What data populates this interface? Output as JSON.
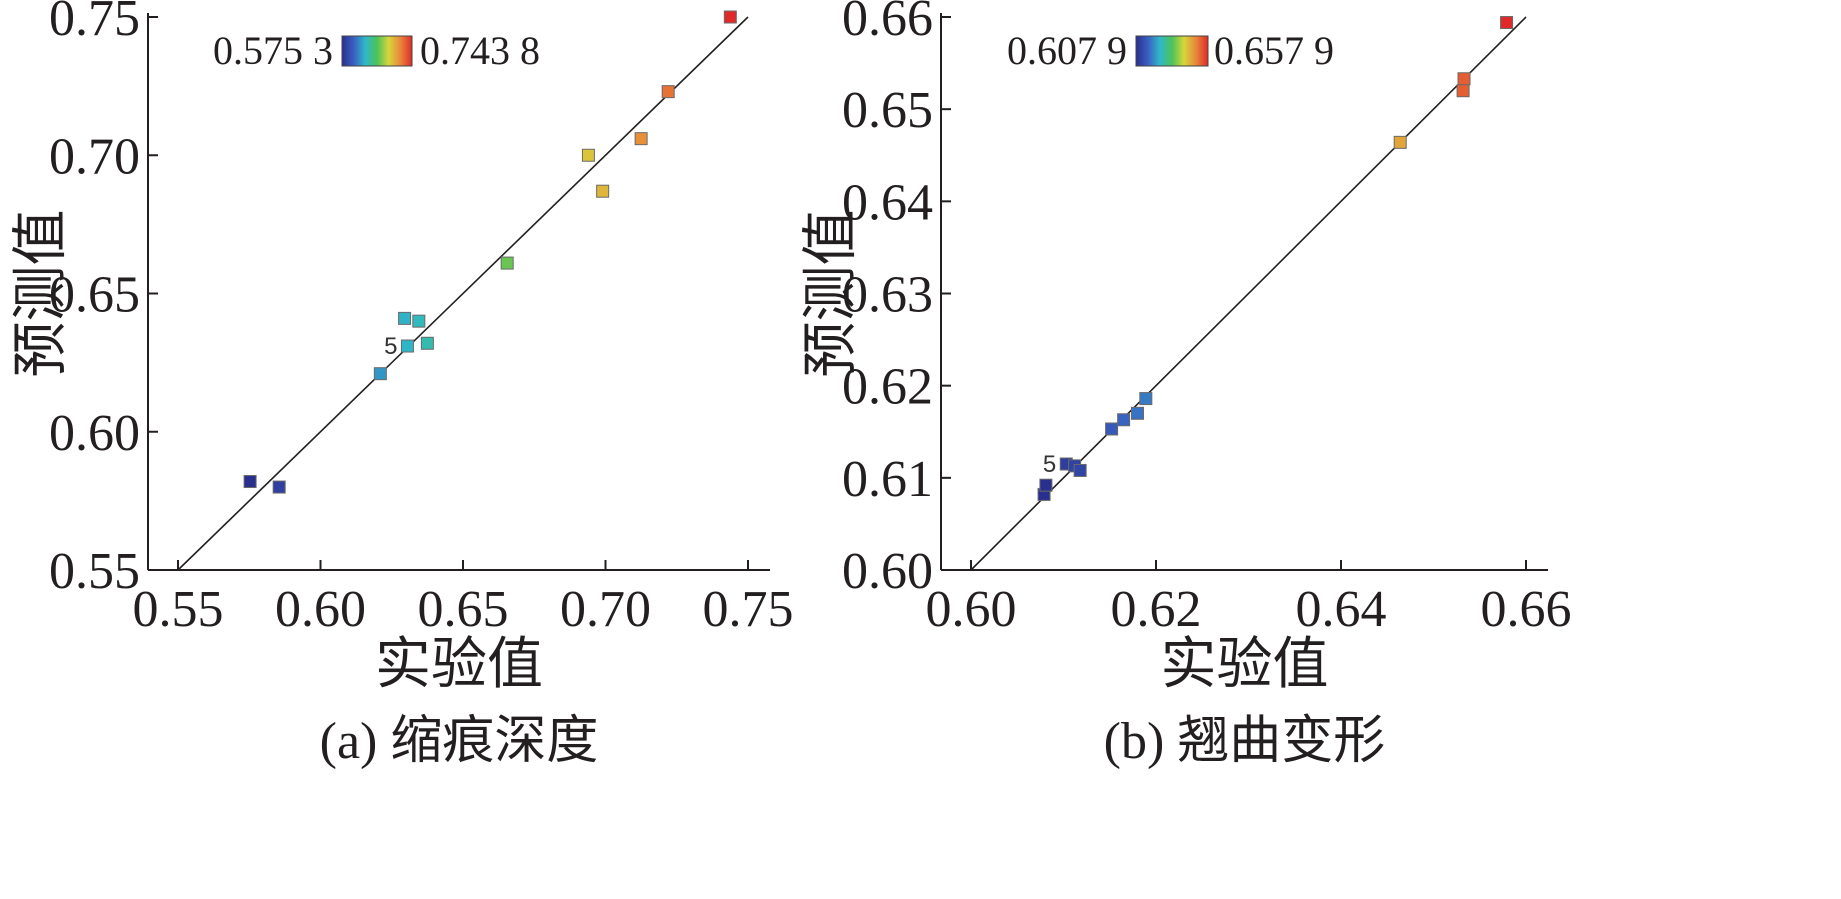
{
  "chart_data": [
    {
      "type": "scatter",
      "caption": "(a) 缩痕深度",
      "xlabel": "实验值",
      "ylabel": "预测值",
      "xlim": [
        0.55,
        0.75
      ],
      "ylim": [
        0.55,
        0.75
      ],
      "x_ticks": [
        "0.55",
        "0.60",
        "0.65",
        "0.70",
        "0.75"
      ],
      "y_ticks": [
        "0.55",
        "0.60",
        "0.65",
        "0.70",
        "0.75"
      ],
      "reference_line": [
        [
          0.55,
          0.55
        ],
        [
          0.75,
          0.75
        ]
      ],
      "colorbar": {
        "min_label": "0.575 3",
        "max_label": "0.743 8",
        "min": 0.5753,
        "max": 0.7438,
        "colors": [
          "#2a2f8f",
          "#3a5fc0",
          "#2fb8c8",
          "#4cc25a",
          "#d6d63a",
          "#e8873a",
          "#e02a2a"
        ]
      },
      "points": [
        {
          "x": 0.5753,
          "y": 0.582
        },
        {
          "x": 0.5855,
          "y": 0.58
        },
        {
          "x": 0.621,
          "y": 0.621
        },
        {
          "x": 0.6295,
          "y": 0.641
        },
        {
          "x": 0.6305,
          "y": 0.631,
          "label": "5"
        },
        {
          "x": 0.6345,
          "y": 0.64
        },
        {
          "x": 0.6375,
          "y": 0.632
        },
        {
          "x": 0.6655,
          "y": 0.661
        },
        {
          "x": 0.694,
          "y": 0.7
        },
        {
          "x": 0.699,
          "y": 0.687
        },
        {
          "x": 0.7125,
          "y": 0.706
        },
        {
          "x": 0.722,
          "y": 0.723
        },
        {
          "x": 0.7438,
          "y": 0.75
        }
      ]
    },
    {
      "type": "scatter",
      "caption": "(b) 翘曲变形",
      "xlabel": "实验值",
      "ylabel": "预测值",
      "xlim": [
        0.6,
        0.66
      ],
      "ylim": [
        0.6,
        0.66
      ],
      "x_ticks": [
        "0.60",
        "0.62",
        "0.64",
        "0.66"
      ],
      "y_ticks": [
        "0.60",
        "0.61",
        "0.62",
        "0.63",
        "0.64",
        "0.65",
        "0.66"
      ],
      "reference_line": [
        [
          0.6,
          0.6
        ],
        [
          0.66,
          0.66
        ]
      ],
      "colorbar": {
        "min_label": "0.607 9",
        "max_label": "0.657 9",
        "min": 0.6079,
        "max": 0.6579,
        "colors": [
          "#2a2f8f",
          "#3a5fc0",
          "#2fb8c8",
          "#4cc25a",
          "#d6d63a",
          "#e8873a",
          "#e02a2a"
        ]
      },
      "points": [
        {
          "x": 0.6079,
          "y": 0.6082
        },
        {
          "x": 0.6081,
          "y": 0.6092
        },
        {
          "x": 0.6103,
          "y": 0.6115,
          "label": "5"
        },
        {
          "x": 0.6112,
          "y": 0.6113
        },
        {
          "x": 0.6118,
          "y": 0.6108
        },
        {
          "x": 0.6152,
          "y": 0.6153
        },
        {
          "x": 0.6165,
          "y": 0.6163
        },
        {
          "x": 0.618,
          "y": 0.617
        },
        {
          "x": 0.6189,
          "y": 0.6186
        },
        {
          "x": 0.6464,
          "y": 0.6464
        },
        {
          "x": 0.6532,
          "y": 0.652
        },
        {
          "x": 0.6533,
          "y": 0.6533
        },
        {
          "x": 0.6579,
          "y": 0.6594
        }
      ]
    }
  ]
}
